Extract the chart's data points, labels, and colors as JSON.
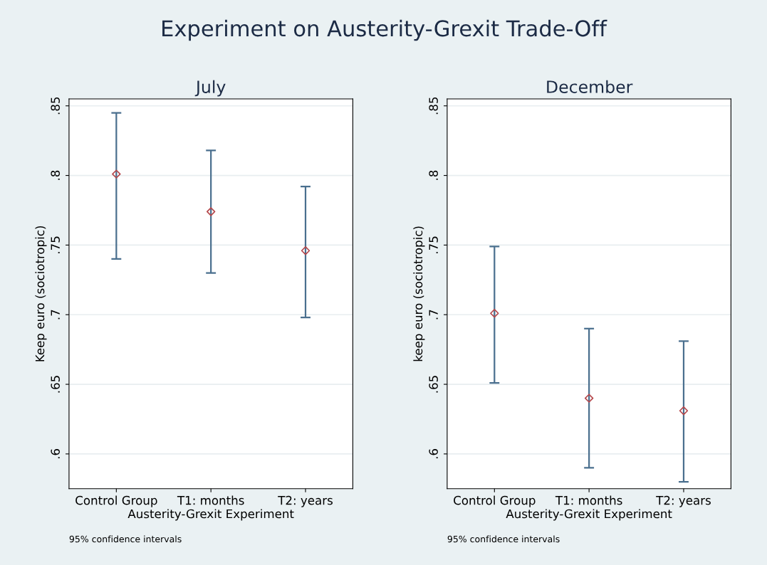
{
  "chart_data": [
    {
      "type": "scatter",
      "title": "Experiment on Austerity-Grexit Trade-Off",
      "subtitle": "July",
      "xlabel": "Austerity-Grexit Experiment",
      "ylabel": "Keep euro (sociotropic)",
      "categories": [
        "Control Group",
        "T1: months",
        "T2: years"
      ],
      "series": [
        {
          "color": "#b5474b",
          "values": [
            0.801,
            0.774,
            0.746
          ],
          "errors": [
            [
              0.74,
              0.845
            ],
            [
              0.73,
              0.818
            ],
            [
              0.698,
              0.792
            ]
          ]
        }
      ],
      "ylim": [
        0.575,
        0.855
      ],
      "yticks": [
        {
          "value": 0.6,
          "label": ".6"
        },
        {
          "value": 0.65,
          "label": ".65"
        },
        {
          "value": 0.7,
          "label": ".7"
        },
        {
          "value": 0.75,
          "label": ".75"
        },
        {
          "value": 0.8,
          "label": ".8"
        },
        {
          "value": 0.85,
          "label": ".85"
        }
      ],
      "grid": "y",
      "marker": "diamond",
      "annotations": [
        "95% confidence intervals"
      ]
    },
    {
      "type": "scatter",
      "subtitle": "December",
      "xlabel": "Austerity-Grexit Experiment",
      "ylabel": "keep euro (sociotropic)",
      "categories": [
        "Control Group",
        "T1: months",
        "T2: years"
      ],
      "series": [
        {
          "color": "#b5474b",
          "values": [
            0.701,
            0.64,
            0.631
          ],
          "errors": [
            [
              0.651,
              0.749
            ],
            [
              0.59,
              0.69
            ],
            [
              0.58,
              0.681
            ]
          ]
        }
      ],
      "ylim": [
        0.575,
        0.855
      ],
      "yticks": [
        {
          "value": 0.6,
          "label": ".6"
        },
        {
          "value": 0.65,
          "label": ".65"
        },
        {
          "value": 0.7,
          "label": ".7"
        },
        {
          "value": 0.75,
          "label": ".75"
        },
        {
          "value": 0.8,
          "label": ".8"
        },
        {
          "value": 0.85,
          "label": ".85"
        }
      ],
      "grid": "y",
      "marker": "diamond",
      "annotations": [
        "95% confidence intervals"
      ]
    }
  ]
}
